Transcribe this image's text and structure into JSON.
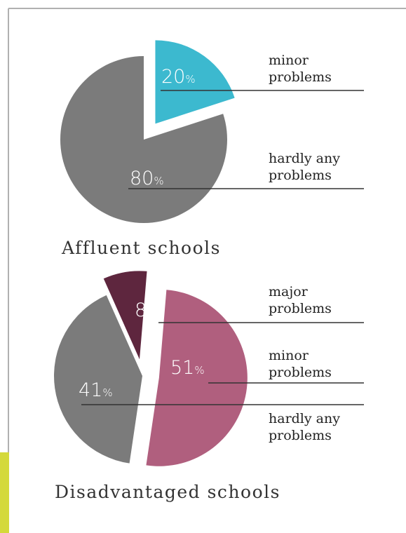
{
  "chart_data": [
    {
      "type": "pie",
      "title": "Affluent schools",
      "slices": [
        {
          "name": "minor problems",
          "label_lines": [
            "minor",
            "problems"
          ],
          "value": 20,
          "color": "#3cb9cf",
          "exploded": true
        },
        {
          "name": "hardly any problems",
          "label_lines": [
            "hardly any",
            "problems"
          ],
          "value": 80,
          "color": "#7b7b7b",
          "exploded": false
        }
      ]
    },
    {
      "type": "pie",
      "title": "Disadvantaged schools",
      "slices": [
        {
          "name": "major problems",
          "label_lines": [
            "major",
            "problems"
          ],
          "value": 8,
          "color": "#5e263e",
          "exploded": true
        },
        {
          "name": "minor problems",
          "label_lines": [
            "minor",
            "problems"
          ],
          "value": 51,
          "color": "#b05f7e",
          "exploded": true
        },
        {
          "name": "hardly any problems",
          "label_lines": [
            "hardly any",
            "problems"
          ],
          "value": 41,
          "color": "#7b7b7b",
          "exploded": false
        }
      ]
    }
  ],
  "colors": {
    "frame_border": "#b0b0b0",
    "accent_bar": "#d4d93a",
    "leader_line": "#333333"
  }
}
